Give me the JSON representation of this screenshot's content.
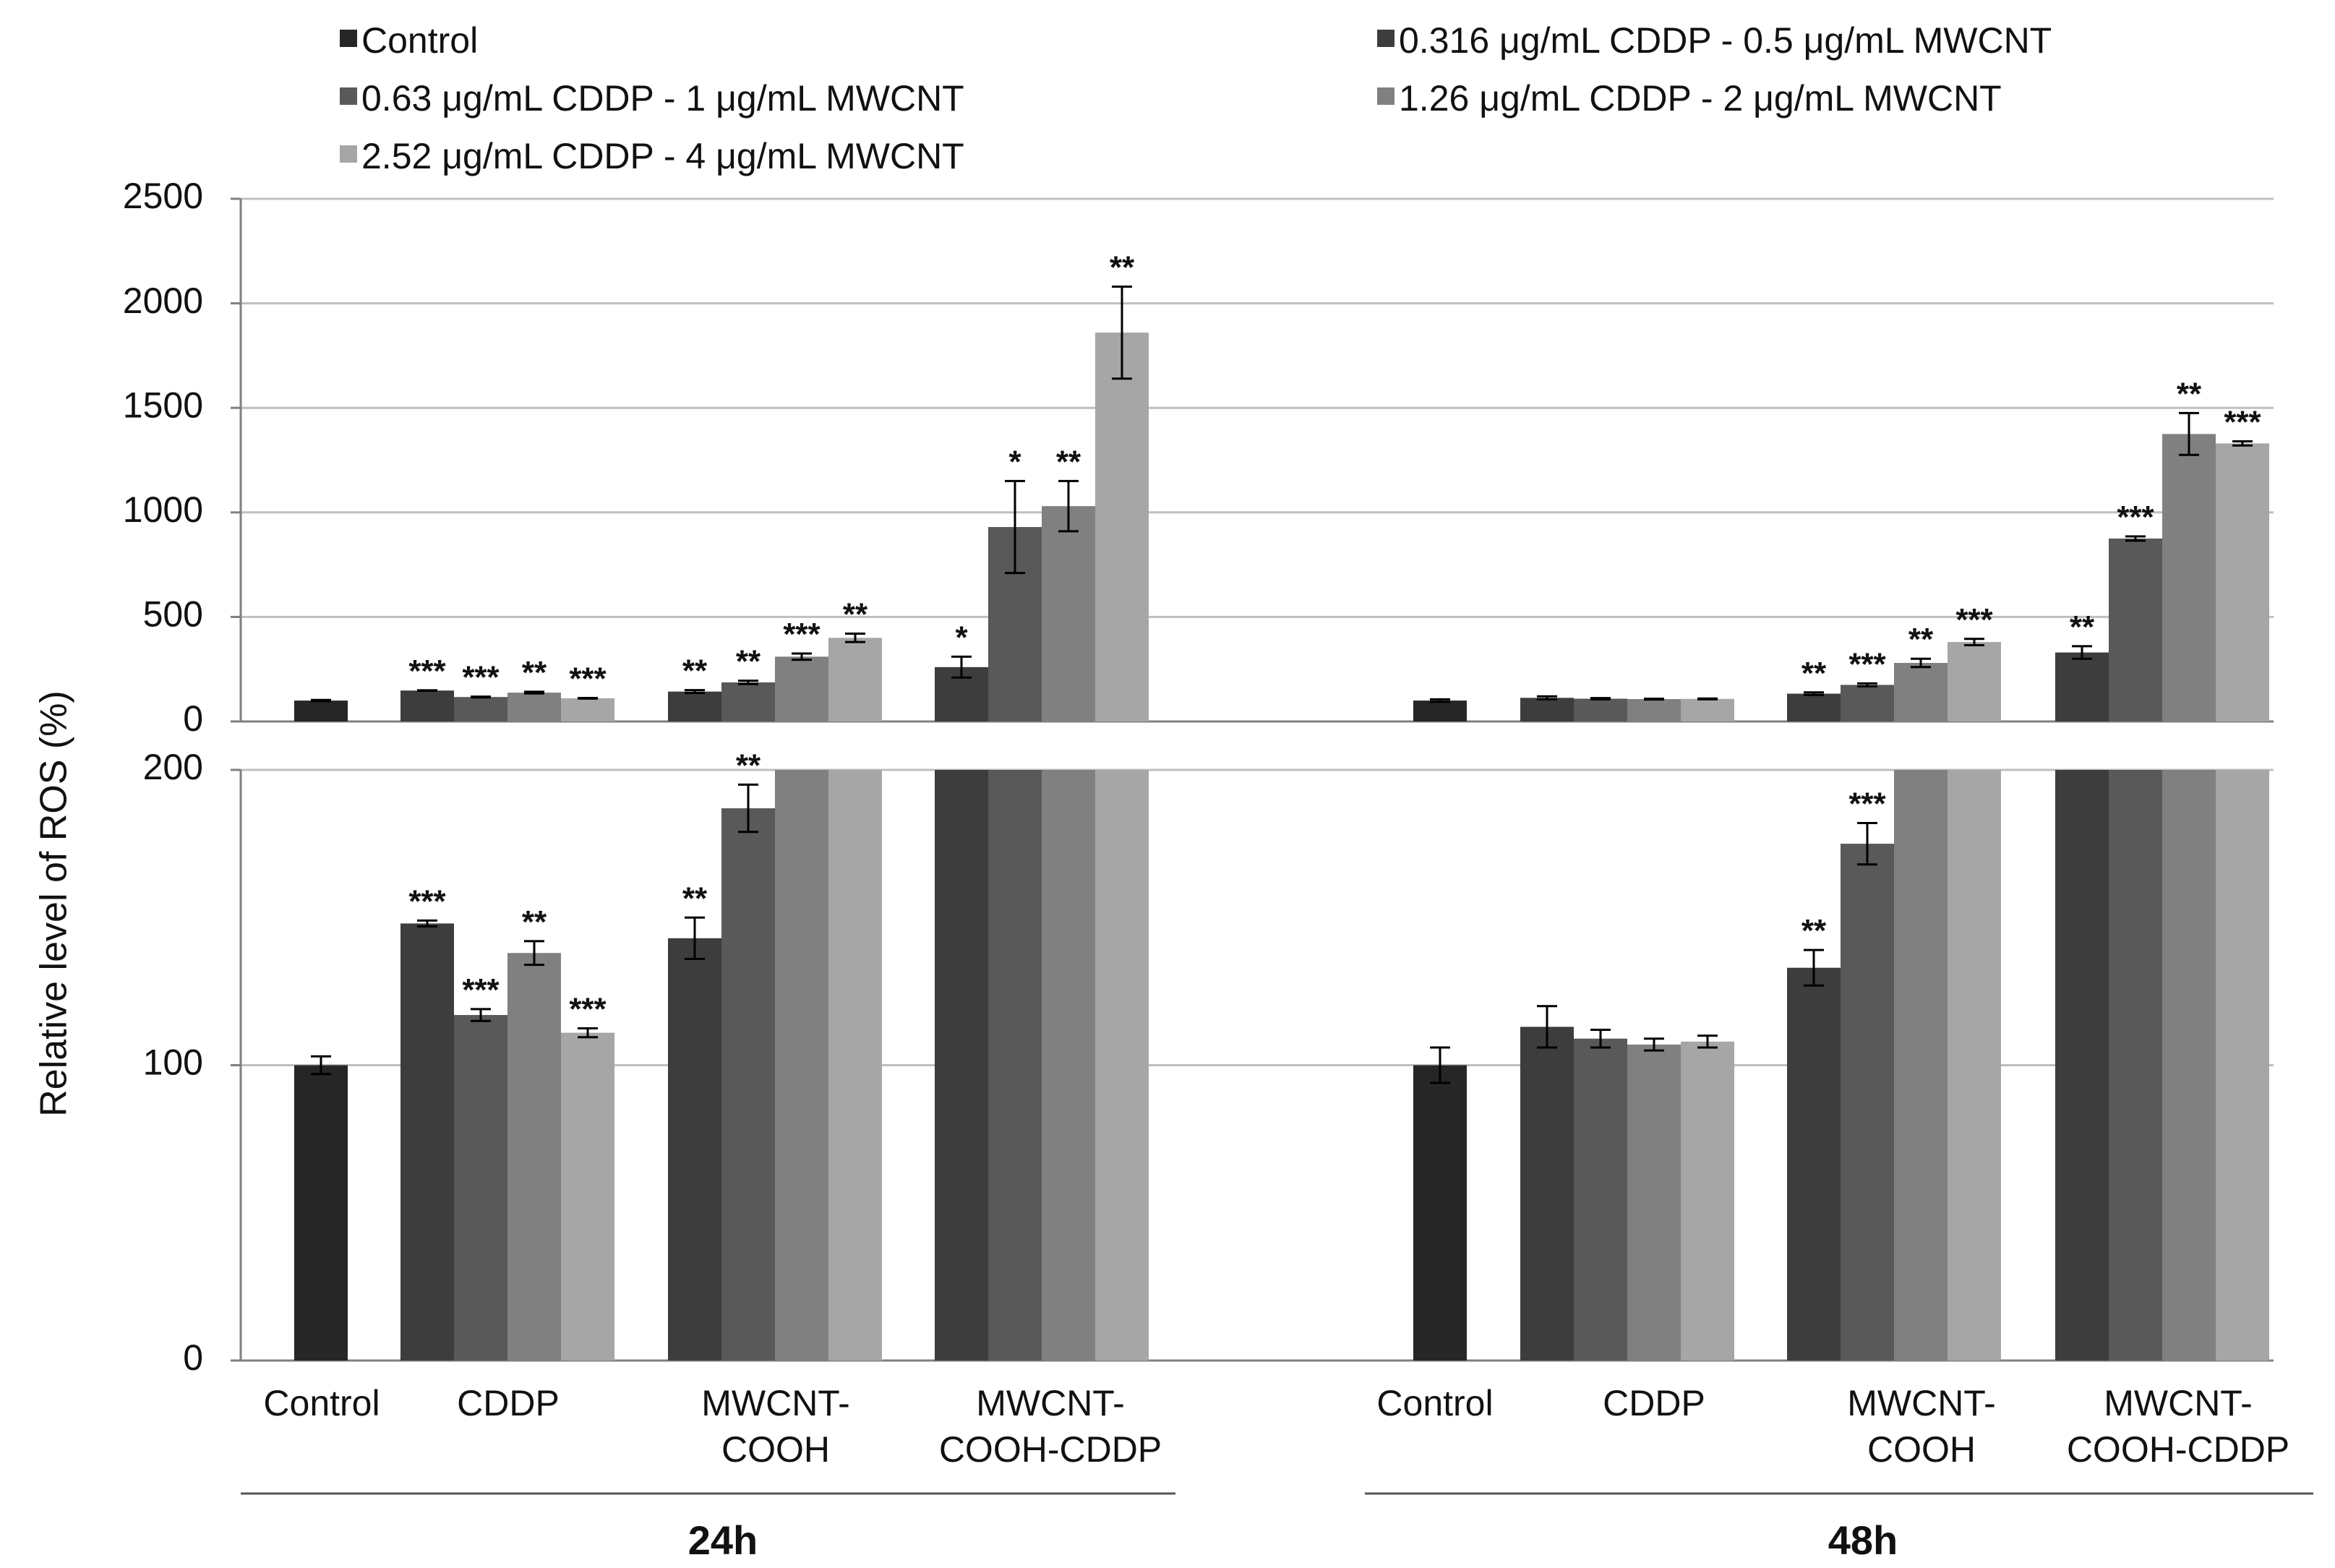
{
  "chart_data": {
    "type": "bar",
    "ylabel": "Relative  level  of ROS (%)",
    "legend_position": "top",
    "grid": true,
    "broken_axis": true,
    "ylim_lower": [
      0,
      200
    ],
    "ylim_upper": [
      0,
      2500
    ],
    "yticks_lower": [
      "0",
      "100",
      "200"
    ],
    "yticks_upper": [
      "0",
      "500",
      "1000",
      "1500",
      "2000",
      "2500"
    ],
    "series": [
      {
        "name": "Control",
        "color": "#262626"
      },
      {
        "name": "0.316 μg/mL CDDP - 0.5 μg/mL MWCNT",
        "color": "#3d3d3d"
      },
      {
        "name": " 0.63 μg/mL CDDP - 1 μg/mL MWCNT",
        "color": "#595959"
      },
      {
        "name": "1.26 μg/mL CDDP - 2 μg/mL MWCNT",
        "color": "#808080"
      },
      {
        "name": "2.52 μg/mL CDDP - 4 μg/mL MWCNT",
        "color": "#a6a6a6"
      }
    ],
    "panels": [
      {
        "time": "24h",
        "groups": [
          {
            "label": [
              "Control"
            ],
            "bars": [
              {
                "series": 0,
                "value": 100,
                "err": 3,
                "sig": ""
              }
            ]
          },
          {
            "label": [
              "CDDP"
            ],
            "bars": [
              {
                "series": 1,
                "value": 148,
                "err": 1,
                "sig": "***"
              },
              {
                "series": 2,
                "value": 117,
                "err": 2,
                "sig": "***"
              },
              {
                "series": 3,
                "value": 138,
                "err": 4,
                "sig": "**"
              },
              {
                "series": 4,
                "value": 111,
                "err": 1.5,
                "sig": "***"
              }
            ]
          },
          {
            "label": [
              "MWCNT-",
              "COOH"
            ],
            "bars": [
              {
                "series": 1,
                "value": 143,
                "err": 7,
                "sig": "**"
              },
              {
                "series": 2,
                "value": 187,
                "err": 8,
                "sig": "**"
              },
              {
                "series": 3,
                "value": 310,
                "err": 15,
                "sig": "***"
              },
              {
                "series": 4,
                "value": 400,
                "err": 20,
                "sig": "**"
              }
            ]
          },
          {
            "label": [
              "MWCNT-",
              "COOH-CDDP"
            ],
            "bars": [
              {
                "series": 1,
                "value": 260,
                "err": 50,
                "sig": "*"
              },
              {
                "series": 2,
                "value": 930,
                "err": 220,
                "sig": "*"
              },
              {
                "series": 3,
                "value": 1030,
                "err": 120,
                "sig": "**"
              },
              {
                "series": 4,
                "value": 1860,
                "err": 220,
                "sig": "**"
              }
            ]
          }
        ]
      },
      {
        "time": "48h",
        "groups": [
          {
            "label": [
              "Control"
            ],
            "bars": [
              {
                "series": 0,
                "value": 100,
                "err": 6,
                "sig": ""
              }
            ]
          },
          {
            "label": [
              "CDDP"
            ],
            "bars": [
              {
                "series": 1,
                "value": 113,
                "err": 7,
                "sig": ""
              },
              {
                "series": 2,
                "value": 109,
                "err": 3,
                "sig": ""
              },
              {
                "series": 3,
                "value": 107,
                "err": 2,
                "sig": ""
              },
              {
                "series": 4,
                "value": 108,
                "err": 2,
                "sig": ""
              }
            ]
          },
          {
            "label": [
              "MWCNT-",
              "COOH"
            ],
            "bars": [
              {
                "series": 1,
                "value": 133,
                "err": 6,
                "sig": "**"
              },
              {
                "series": 2,
                "value": 175,
                "err": 7,
                "sig": "***"
              },
              {
                "series": 3,
                "value": 280,
                "err": 20,
                "sig": "**"
              },
              {
                "series": 4,
                "value": 380,
                "err": 15,
                "sig": "***"
              }
            ]
          },
          {
            "label": [
              "MWCNT-",
              "COOH-CDDP"
            ],
            "bars": [
              {
                "series": 1,
                "value": 330,
                "err": 30,
                "sig": "**"
              },
              {
                "series": 2,
                "value": 875,
                "err": 10,
                "sig": "***"
              },
              {
                "series": 3,
                "value": 1375,
                "err": 100,
                "sig": "**"
              },
              {
                "series": 4,
                "value": 1330,
                "err": 10,
                "sig": "***"
              }
            ]
          }
        ]
      }
    ]
  }
}
